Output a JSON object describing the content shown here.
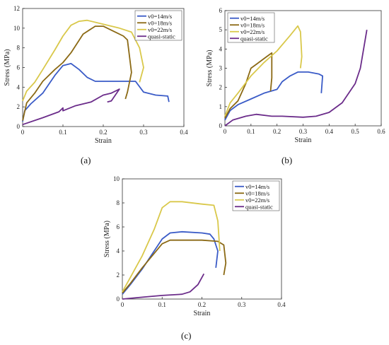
{
  "panel_labels": [
    "(a)",
    "(b)",
    "(c)"
  ],
  "chart_data": [
    {
      "type": "line",
      "xlabel": "Strain",
      "ylabel": "Stress (MPa)",
      "xlim": [
        0,
        0.4
      ],
      "ylim": [
        0,
        12
      ],
      "xticks": [
        "0",
        "0.1",
        "0.2",
        "0.3",
        "0.4"
      ],
      "yticks": [
        "0",
        "2",
        "4",
        "6",
        "8",
        "10",
        "12"
      ],
      "grid": false,
      "legend_position": "top-right",
      "series": [
        {
          "name": "v0=14m/s",
          "color": "#3a5bc7",
          "points": [
            [
              0,
              0.5
            ],
            [
              0.005,
              1.6
            ],
            [
              0.02,
              2.3
            ],
            [
              0.05,
              3.4
            ],
            [
              0.08,
              5.2
            ],
            [
              0.1,
              6.2
            ],
            [
              0.12,
              6.4
            ],
            [
              0.14,
              5.8
            ],
            [
              0.16,
              5.0
            ],
            [
              0.18,
              4.6
            ],
            [
              0.2,
              4.6
            ],
            [
              0.25,
              4.6
            ],
            [
              0.28,
              4.6
            ],
            [
              0.3,
              3.5
            ],
            [
              0.33,
              3.2
            ],
            [
              0.36,
              3.1
            ],
            [
              0.363,
              2.5
            ]
          ]
        },
        {
          "name": "v0=18m/s",
          "color": "#8b6914",
          "points": [
            [
              0,
              0.6
            ],
            [
              0.01,
              2.4
            ],
            [
              0.03,
              3.4
            ],
            [
              0.05,
              4.6
            ],
            [
              0.08,
              5.8
            ],
            [
              0.1,
              6.5
            ],
            [
              0.12,
              7.5
            ],
            [
              0.15,
              9.4
            ],
            [
              0.18,
              10.2
            ],
            [
              0.2,
              10.2
            ],
            [
              0.23,
              9.6
            ],
            [
              0.25,
              9.2
            ],
            [
              0.26,
              8.8
            ],
            [
              0.27,
              5.5
            ],
            [
              0.26,
              3.5
            ],
            [
              0.255,
              2.8
            ]
          ]
        },
        {
          "name": "v0=22m/s",
          "color": "#d9c84a",
          "points": [
            [
              0,
              2.6
            ],
            [
              0.01,
              3.6
            ],
            [
              0.03,
              4.5
            ],
            [
              0.05,
              5.8
            ],
            [
              0.08,
              7.8
            ],
            [
              0.1,
              9.2
            ],
            [
              0.12,
              10.3
            ],
            [
              0.14,
              10.7
            ],
            [
              0.16,
              10.8
            ],
            [
              0.2,
              10.4
            ],
            [
              0.24,
              10.0
            ],
            [
              0.27,
              9.6
            ],
            [
              0.29,
              8.0
            ],
            [
              0.3,
              6.0
            ],
            [
              0.29,
              4.5
            ]
          ]
        },
        {
          "name": "quasi-static",
          "color": "#6b2c8a",
          "points": [
            [
              0,
              0.2
            ],
            [
              0.05,
              0.9
            ],
            [
              0.09,
              1.5
            ],
            [
              0.1,
              1.9
            ],
            [
              0.1,
              1.6
            ],
            [
              0.13,
              2.1
            ],
            [
              0.17,
              2.5
            ],
            [
              0.2,
              3.2
            ],
            [
              0.22,
              3.4
            ],
            [
              0.24,
              3.8
            ],
            [
              0.22,
              2.6
            ],
            [
              0.21,
              2.5
            ]
          ]
        }
      ]
    },
    {
      "type": "line",
      "xlabel": "Strain",
      "ylabel": "Stress (MPa)",
      "xlim": [
        0,
        0.6
      ],
      "ylim": [
        0,
        6
      ],
      "xticks": [
        "0",
        "0.1",
        "0.2",
        "0.3",
        "0.4",
        "0.5",
        "0.6"
      ],
      "yticks": [
        "0",
        "1",
        "2",
        "3",
        "4",
        "5",
        "6"
      ],
      "grid": false,
      "legend_position": "top-left",
      "series": [
        {
          "name": "v0=14m/s",
          "color": "#3a5bc7",
          "points": [
            [
              0,
              0.3
            ],
            [
              0.02,
              0.8
            ],
            [
              0.05,
              1.1
            ],
            [
              0.1,
              1.4
            ],
            [
              0.15,
              1.7
            ],
            [
              0.2,
              1.9
            ],
            [
              0.22,
              2.3
            ],
            [
              0.25,
              2.6
            ],
            [
              0.28,
              2.8
            ],
            [
              0.32,
              2.8
            ],
            [
              0.36,
              2.7
            ],
            [
              0.375,
              2.6
            ],
            [
              0.37,
              1.7
            ]
          ]
        },
        {
          "name": "v0=18m/s",
          "color": "#8b6914",
          "points": [
            [
              0,
              0.4
            ],
            [
              0.02,
              0.9
            ],
            [
              0.05,
              1.3
            ],
            [
              0.08,
              2.2
            ],
            [
              0.1,
              3.0
            ],
            [
              0.12,
              3.2
            ],
            [
              0.15,
              3.5
            ],
            [
              0.17,
              3.7
            ],
            [
              0.18,
              3.8
            ],
            [
              0.18,
              2.5
            ],
            [
              0.175,
              1.8
            ]
          ]
        },
        {
          "name": "v0=22m/s",
          "color": "#d9c84a",
          "points": [
            [
              0,
              0.5
            ],
            [
              0.02,
              1.2
            ],
            [
              0.05,
              1.7
            ],
            [
              0.1,
              2.6
            ],
            [
              0.15,
              3.3
            ],
            [
              0.2,
              3.9
            ],
            [
              0.25,
              4.7
            ],
            [
              0.28,
              5.2
            ],
            [
              0.29,
              4.9
            ],
            [
              0.295,
              3.6
            ],
            [
              0.29,
              3.0
            ]
          ]
        },
        {
          "name": "quasi-static",
          "color": "#6b2c8a",
          "points": [
            [
              0,
              0.0
            ],
            [
              0.03,
              0.3
            ],
            [
              0.08,
              0.5
            ],
            [
              0.12,
              0.6
            ],
            [
              0.18,
              0.5
            ],
            [
              0.22,
              0.5
            ],
            [
              0.3,
              0.45
            ],
            [
              0.35,
              0.5
            ],
            [
              0.4,
              0.7
            ],
            [
              0.45,
              1.2
            ],
            [
              0.5,
              2.2
            ],
            [
              0.52,
              3.0
            ],
            [
              0.545,
              5.0
            ]
          ]
        }
      ]
    },
    {
      "type": "line",
      "xlabel": "Strain",
      "ylabel": "Stress (MPa)",
      "xlim": [
        0,
        0.4
      ],
      "ylim": [
        0,
        10
      ],
      "xticks": [
        "0",
        "0.1",
        "0.2",
        "0.3",
        "0.4"
      ],
      "yticks": [
        "0",
        "2",
        "4",
        "6",
        "8",
        "10"
      ],
      "grid": false,
      "legend_position": "top-right",
      "series": [
        {
          "name": "v0=14m/s",
          "color": "#3a5bc7",
          "points": [
            [
              0,
              0.4
            ],
            [
              0.02,
              1.2
            ],
            [
              0.05,
              2.5
            ],
            [
              0.08,
              4.0
            ],
            [
              0.1,
              5.0
            ],
            [
              0.12,
              5.5
            ],
            [
              0.15,
              5.6
            ],
            [
              0.2,
              5.5
            ],
            [
              0.22,
              5.4
            ],
            [
              0.23,
              5.0
            ],
            [
              0.24,
              4.0
            ],
            [
              0.235,
              2.6
            ]
          ]
        },
        {
          "name": "v0=18m/s",
          "color": "#8b6914",
          "points": [
            [
              0,
              0.5
            ],
            [
              0.02,
              1.3
            ],
            [
              0.05,
              2.6
            ],
            [
              0.08,
              3.8
            ],
            [
              0.1,
              4.6
            ],
            [
              0.12,
              4.9
            ],
            [
              0.16,
              4.9
            ],
            [
              0.2,
              4.9
            ],
            [
              0.24,
              4.8
            ],
            [
              0.255,
              4.5
            ],
            [
              0.26,
              3.0
            ],
            [
              0.255,
              2.0
            ]
          ]
        },
        {
          "name": "v0=22m/s",
          "color": "#d9c84a",
          "points": [
            [
              0,
              0.6
            ],
            [
              0.02,
              1.8
            ],
            [
              0.05,
              3.6
            ],
            [
              0.08,
              5.8
            ],
            [
              0.1,
              7.6
            ],
            [
              0.12,
              8.1
            ],
            [
              0.15,
              8.1
            ],
            [
              0.2,
              7.9
            ],
            [
              0.23,
              7.8
            ],
            [
              0.24,
              6.5
            ],
            [
              0.245,
              4.0
            ]
          ]
        },
        {
          "name": "quasi-static",
          "color": "#6b2c8a",
          "points": [
            [
              0,
              0.0
            ],
            [
              0.05,
              0.15
            ],
            [
              0.1,
              0.3
            ],
            [
              0.15,
              0.4
            ],
            [
              0.17,
              0.6
            ],
            [
              0.19,
              1.2
            ],
            [
              0.205,
              2.1
            ]
          ]
        }
      ]
    }
  ]
}
